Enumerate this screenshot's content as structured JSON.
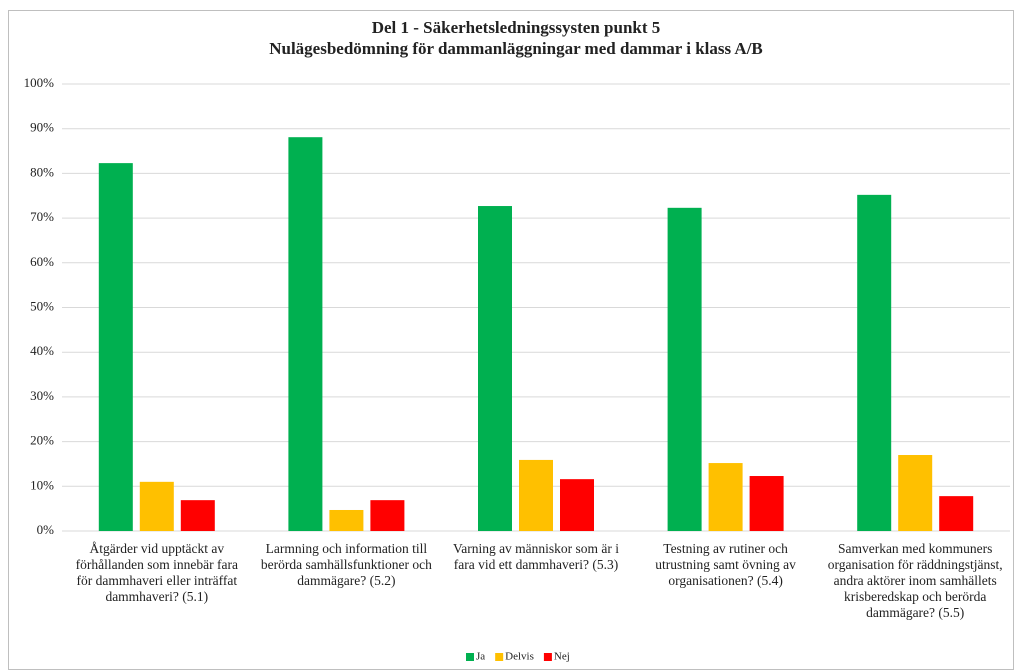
{
  "chart_data": {
    "type": "bar",
    "title": "Del 1 - Säkerhetsledningssysten punkt 5",
    "subtitle": "Nulägesbedömning för dammanläggningar med dammar i klass A/B",
    "categories": [
      "Åtgärder vid upptäckt av förhållanden som innebär fara för dammhaveri eller inträffat dammhaveri? (5.1)",
      "Larmning och information till berörda samhällsfunktioner och dammägare? (5.2)",
      "Varning av människor som är i fara vid ett dammhaveri? (5.3)",
      "Testning av rutiner och utrustning samt övning av organisationen? (5.4)",
      "Samverkan med kommuners organisation för räddningstjänst, andra aktörer inom samhällets krisberedskap och berörda dammägare? (5.5)"
    ],
    "series": [
      {
        "name": "Ja",
        "color": "#00b050",
        "values": [
          82.3,
          88.1,
          72.7,
          72.3,
          75.2
        ]
      },
      {
        "name": "Delvis",
        "color": "#ffc000",
        "values": [
          11,
          4.7,
          15.9,
          15.2,
          17
        ]
      },
      {
        "name": "Nej",
        "color": "#ff0000",
        "values": [
          6.9,
          6.9,
          11.6,
          12.3,
          7.8
        ]
      }
    ],
    "ylim": [
      0,
      100
    ],
    "yticks": [
      {
        "value": 0,
        "label": "0%"
      },
      {
        "value": 10,
        "label": "10%"
      },
      {
        "value": 20,
        "label": "20%"
      },
      {
        "value": 30,
        "label": "30%"
      },
      {
        "value": 40,
        "label": "40%"
      },
      {
        "value": 50,
        "label": "50%"
      },
      {
        "value": 60,
        "label": "60%"
      },
      {
        "value": 70,
        "label": "70%"
      },
      {
        "value": 80,
        "label": "80%"
      },
      {
        "value": 90,
        "label": "90%"
      },
      {
        "value": 100,
        "label": "100%"
      }
    ],
    "grid": true,
    "legend": "bottom"
  }
}
